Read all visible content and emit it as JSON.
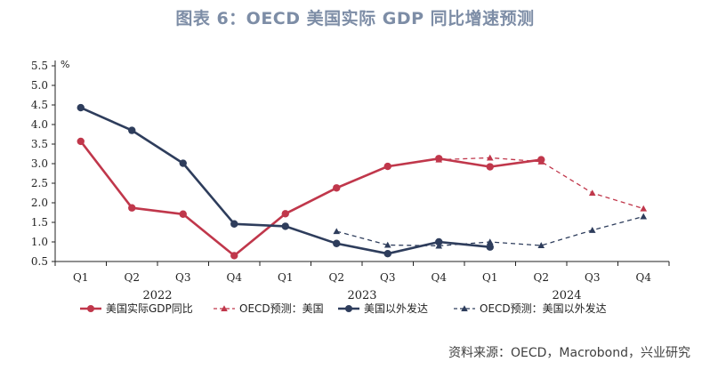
{
  "title": "图表 6：OECD 美国实际 GDP 同比增速预测",
  "source": "资料来源：OECD，Macrobond，兴业研究",
  "chart_data": {
    "type": "line",
    "unit": "%",
    "ylim": [
      0.5,
      5.5
    ],
    "yticks": [
      "5.5",
      "5.0",
      "4.5",
      "4.0",
      "3.5",
      "3.0",
      "2.5",
      "2.0",
      "1.5",
      "1.0",
      "0.5"
    ],
    "categories": [
      "Q1",
      "Q2",
      "Q3",
      "Q4",
      "Q1",
      "Q2",
      "Q3",
      "Q4",
      "Q1",
      "Q2",
      "Q3",
      "Q4"
    ],
    "years": [
      "2022",
      "2023",
      "2024"
    ],
    "series": [
      {
        "name": "美国实际GDP同比",
        "color": "#c0374b",
        "style": "solid",
        "marker": "circle",
        "values": [
          3.57,
          1.87,
          1.71,
          0.65,
          1.72,
          2.38,
          2.93,
          3.13,
          2.92,
          3.1,
          null,
          null
        ]
      },
      {
        "name": "OECD预测：美国",
        "color": "#c0374b",
        "style": "dashed",
        "marker": "triangle",
        "values": [
          null,
          null,
          null,
          null,
          null,
          null,
          null,
          3.1,
          3.15,
          3.05,
          2.25,
          1.85
        ]
      },
      {
        "name": "美国以外发达",
        "color": "#2e3d5c",
        "style": "solid",
        "marker": "circle",
        "values": [
          4.43,
          3.85,
          3.01,
          1.46,
          1.4,
          0.96,
          0.7,
          1.0,
          0.87,
          null,
          null,
          null
        ]
      },
      {
        "name": "OECD预测：美国以外发达",
        "color": "#2e3d5c",
        "style": "dashed",
        "marker": "triangle",
        "values": [
          null,
          null,
          null,
          null,
          null,
          1.27,
          0.92,
          0.9,
          1.0,
          0.91,
          1.3,
          1.65
        ]
      }
    ]
  }
}
